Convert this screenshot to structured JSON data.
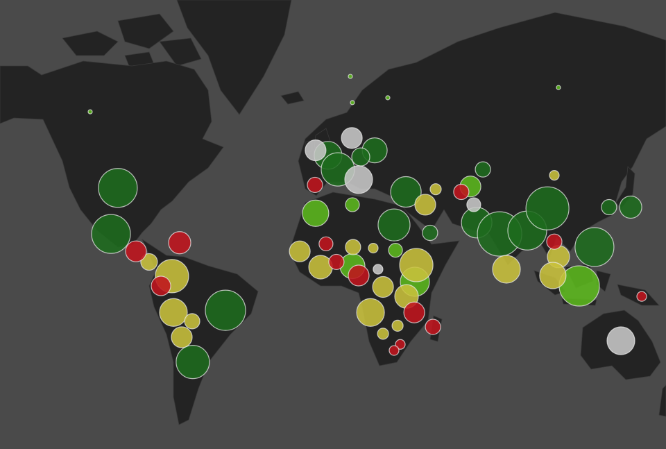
{
  "map_data": {
    "series": [
      {
        "color": "#1e6b1e",
        "points": [
          [
            -106.7,
            39.5,
            28
          ],
          [
            -110,
            20.5,
            28
          ],
          [
            -55,
            -15.5,
            29
          ],
          [
            -70.7,
            -37.5,
            24
          ],
          [
            -5.7,
            50.5,
            20
          ],
          [
            -1,
            46,
            24
          ],
          [
            16.7,
            52,
            18
          ],
          [
            10,
            50,
            13
          ],
          [
            31.7,
            38,
            22
          ],
          [
            26,
            24.5,
            23
          ],
          [
            43.3,
            21,
            11
          ],
          [
            68.7,
            46,
            11
          ],
          [
            65.7,
            25.5,
            22
          ],
          [
            76.7,
            20.5,
            32
          ],
          [
            90,
            22,
            28
          ],
          [
            99.7,
            31.5,
            31
          ],
          [
            122.3,
            14.5,
            28
          ],
          [
            129.3,
            32,
            11
          ],
          [
            139.7,
            32,
            16
          ]
        ]
      },
      {
        "color": "#5cb81e",
        "points": [
          [
            -11.7,
            29.5,
            19
          ],
          [
            6,
            33,
            10
          ],
          [
            26.7,
            13,
            10
          ],
          [
            62.7,
            40,
            15
          ],
          [
            115,
            -4,
            29
          ],
          [
            6,
            5.5,
            18
          ],
          [
            36,
            -2,
            21
          ],
          [
            -120,
            62,
            3
          ],
          [
            5,
            69,
            3
          ],
          [
            105,
            67,
            3
          ],
          [
            6,
            64,
            3
          ],
          [
            23,
            65,
            3
          ]
        ]
      },
      {
        "color": "#c9c13c",
        "points": [
          [
            -91.7,
            7.5,
            12
          ],
          [
            -80.7,
            0.7,
            24
          ],
          [
            -80,
            -16.5,
            20
          ],
          [
            -71,
            -20.5,
            11
          ],
          [
            -76,
            -27.5,
            15
          ],
          [
            41,
            33,
            15
          ],
          [
            80,
            4,
            20
          ],
          [
            105,
            10,
            16
          ],
          [
            102.3,
            1,
            19
          ],
          [
            103,
            44,
            7
          ],
          [
            -19.3,
            12.5,
            15
          ],
          [
            -9.3,
            5,
            17
          ],
          [
            6.3,
            14.5,
            11
          ],
          [
            20.7,
            -4.5,
            15
          ],
          [
            36.7,
            6,
            24
          ],
          [
            32,
            -9,
            17
          ],
          [
            14.7,
            -16.5,
            20
          ],
          [
            27.7,
            -22.5,
            8
          ],
          [
            20.7,
            -26,
            8
          ],
          [
            16,
            14,
            7
          ],
          [
            46,
            39,
            8
          ]
        ]
      },
      {
        "color": "#c0141e",
        "points": [
          [
            -77,
            16.5,
            16
          ],
          [
            -98,
            12.5,
            15
          ],
          [
            -86,
            -4,
            14
          ],
          [
            -12,
            40.6,
            11
          ],
          [
            58.3,
            38,
            11
          ],
          [
            103,
            17,
            11
          ],
          [
            145,
            -9,
            7
          ],
          [
            -6.7,
            16,
            10
          ],
          [
            -1.7,
            7.5,
            11
          ],
          [
            9,
            1,
            15
          ],
          [
            35.7,
            -16.5,
            15
          ],
          [
            29,
            -30.5,
            7
          ],
          [
            26,
            -33,
            7
          ],
          [
            44.7,
            -23,
            11
          ]
        ]
      },
      {
        "color": "#c8c8c8",
        "points": [
          [
            -11.7,
            52,
            15
          ],
          [
            5.7,
            55.5,
            15
          ],
          [
            9,
            42.5,
            20
          ],
          [
            64.3,
            33,
            10
          ],
          [
            135,
            -29,
            20
          ],
          [
            18.3,
            4,
            7
          ]
        ]
      }
    ]
  }
}
